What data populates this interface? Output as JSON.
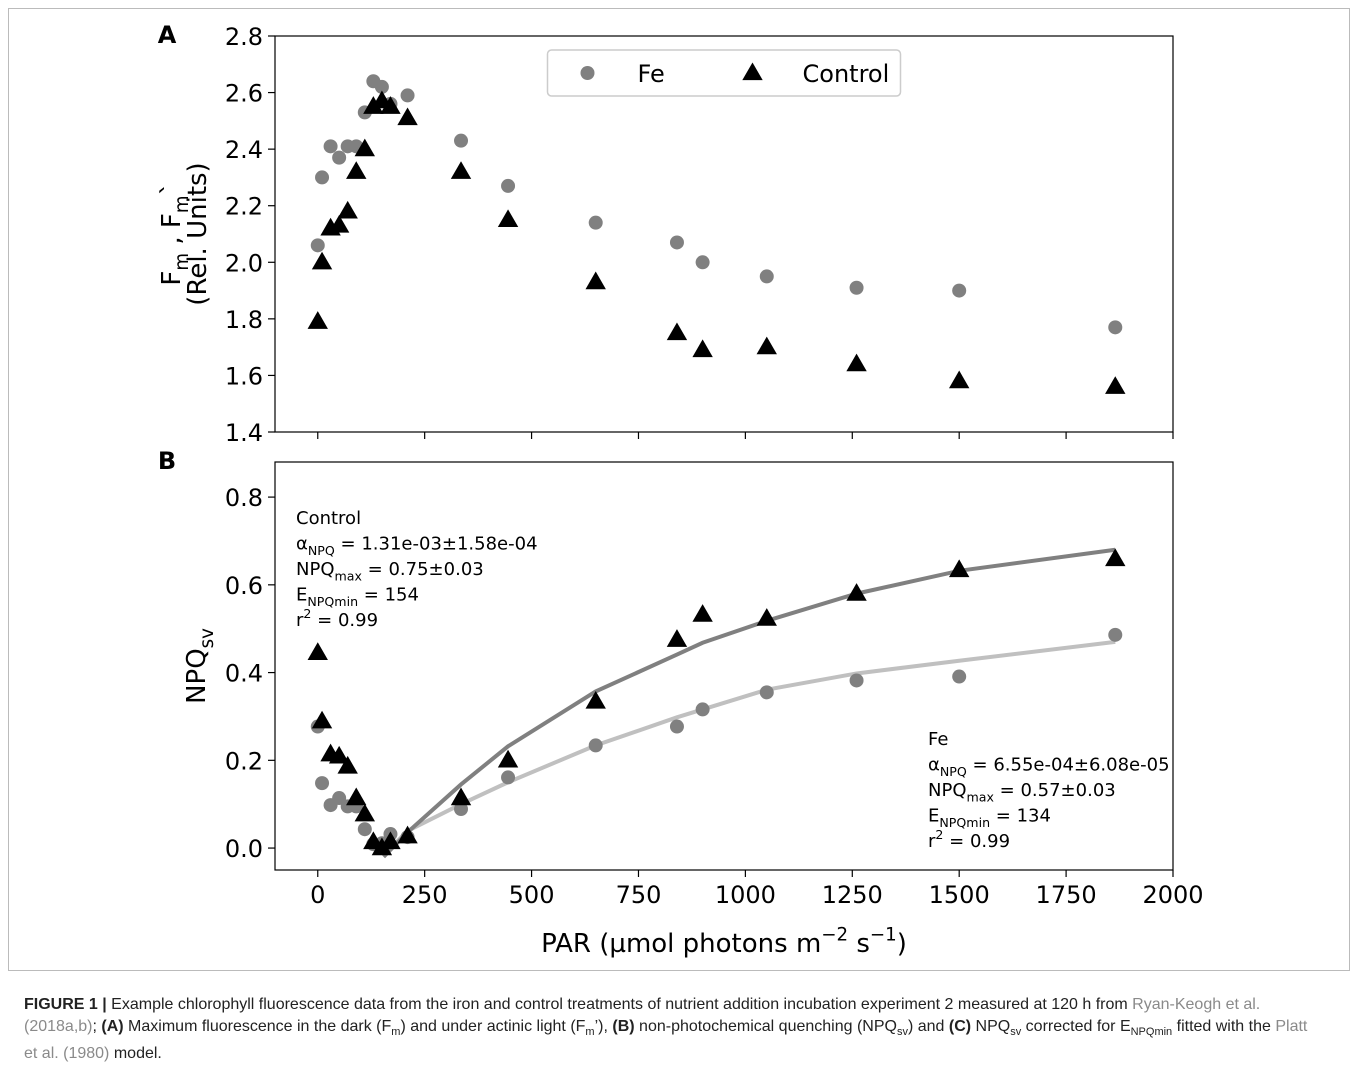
{
  "chart_data": [
    {
      "type": "scatter",
      "panel": "A",
      "x": [
        0,
        10,
        30,
        50,
        70,
        90,
        110,
        130,
        150,
        170,
        210,
        335,
        445,
        650,
        840,
        900,
        1050,
        1260,
        1500,
        1865
      ],
      "series": [
        {
          "name": "Fe",
          "color": "#808080",
          "marker": "o",
          "values": [
            2.06,
            2.3,
            2.41,
            2.37,
            2.41,
            2.41,
            2.53,
            2.64,
            2.62,
            2.56,
            2.59,
            2.43,
            2.27,
            2.14,
            2.07,
            2.0,
            1.95,
            1.91,
            1.9,
            1.77
          ]
        },
        {
          "name": "Control",
          "color": "#000000",
          "marker": "^",
          "values": [
            1.79,
            2.0,
            2.12,
            2.13,
            2.18,
            2.32,
            2.4,
            2.55,
            2.57,
            2.55,
            2.51,
            2.32,
            2.15,
            1.93,
            1.75,
            1.69,
            1.7,
            1.64,
            1.58,
            1.56
          ]
        }
      ],
      "ylabel": [
        [
          "F",
          "m",
          " , F",
          "m",
          "`"
        ],
        [
          "(Rel. Units)"
        ]
      ],
      "xlim": [
        -100,
        2000
      ],
      "xticks": [
        0,
        250,
        500,
        750,
        1000,
        1250,
        1500,
        1750,
        2000
      ],
      "xtick_labels": false,
      "ylim": [
        1.4,
        2.8
      ],
      "yticks": [
        1.4,
        1.6,
        1.8,
        {
          "value": 2,
          "label": "2.0"
        },
        2.2,
        2.4,
        2.6,
        2.8
      ],
      "legend": "upper center"
    },
    {
      "type": "scatter",
      "panel": "B",
      "x": [
        0,
        10,
        30,
        50,
        70,
        90,
        110,
        130,
        150,
        170,
        210,
        335,
        445,
        650,
        840,
        900,
        1050,
        1260,
        1500,
        1865
      ],
      "series": [
        {
          "color": "#808080",
          "marker": "o",
          "values": [
            0.277,
            0.148,
            0.098,
            0.114,
            0.095,
            0.095,
            0.043,
            0.009,
            0.011,
            0.032,
            0.025,
            0.089,
            0.161,
            0.234,
            0.277,
            0.316,
            0.355,
            0.382,
            0.391,
            0.486
          ]
        },
        {
          "color": "#000000",
          "marker": "^",
          "values": [
            0.445,
            0.289,
            0.214,
            0.209,
            0.186,
            0.114,
            0.077,
            0.014,
            0.0,
            0.014,
            0.027,
            0.114,
            0.2,
            0.334,
            0.475,
            0.532,
            0.523,
            0.58,
            0.634,
            0.659
          ]
        }
      ],
      "fits": [
        {
          "color": "#c0c0c0",
          "x": [
            170,
            210,
            335,
            445,
            650,
            840,
            900,
            1050,
            1260,
            1500,
            1865
          ],
          "values": [
            0.0,
            0.039,
            0.1,
            0.15,
            0.234,
            0.298,
            0.316,
            0.361,
            0.398,
            0.427,
            0.47
          ]
        },
        {
          "color": "#808080",
          "x": [
            154,
            210,
            335,
            445,
            650,
            840,
            900,
            1050,
            1260,
            1500,
            1865
          ],
          "values": [
            -0.02,
            0.036,
            0.145,
            0.232,
            0.357,
            0.441,
            0.468,
            0.518,
            0.58,
            0.632,
            0.68
          ]
        }
      ],
      "annotations": [
        [
          [
            "Control"
          ],
          [
            "α",
            "NPQ",
            " = 1.31e-03±1.58e-04"
          ],
          [
            "NPQ",
            "max",
            " = 0.75±0.03"
          ],
          [
            "E",
            "NPQmin",
            " = 154"
          ],
          [
            "r",
            "2",
            " = 0.99"
          ]
        ],
        [
          [
            "Fe"
          ],
          [
            "α",
            "NPQ",
            " = 6.55e-04±6.08e-05"
          ],
          [
            "NPQ",
            "max",
            " = 0.57±0.03"
          ],
          [
            "E",
            "NPQmin",
            " = 134"
          ],
          [
            "r",
            "2",
            " = 0.99"
          ]
        ]
      ],
      "ylabel": [
        [
          "NPQ",
          "sv"
        ]
      ],
      "xlabel": [
        "PAR (µmol photons m",
        "−2",
        " s",
        "−1",
        ")"
      ],
      "xlim": [
        -100,
        2000
      ],
      "xticks": [
        0,
        250,
        500,
        750,
        1000,
        1250,
        1500,
        1750,
        2000
      ],
      "ylim": [
        -0.05,
        0.88
      ],
      "yticks": [
        {
          "value": 0,
          "label": "0.0"
        },
        0.2,
        0.4,
        0.6,
        0.8
      ]
    }
  ],
  "caption": [
    "FIGURE 1 |",
    " Example chlorophyll fluorescence data from the iron and control treatments of nutrient addition incubation experiment 2 measured at 120 h from ",
    "Ryan-Keogh et al. (2018a,b)",
    "; ",
    "(A)",
    " Maximum fluorescence in the dark (F",
    "m",
    ") and under actinic light (F",
    "m",
    "’), ",
    "(B)",
    " non-photochemical quenching (NPQ",
    "sv",
    ") and ",
    "(C)",
    " NPQ",
    "sv",
    " corrected for E",
    "NPQmin",
    " fitted with the ",
    "Platt et al. (1980)",
    " model."
  ]
}
